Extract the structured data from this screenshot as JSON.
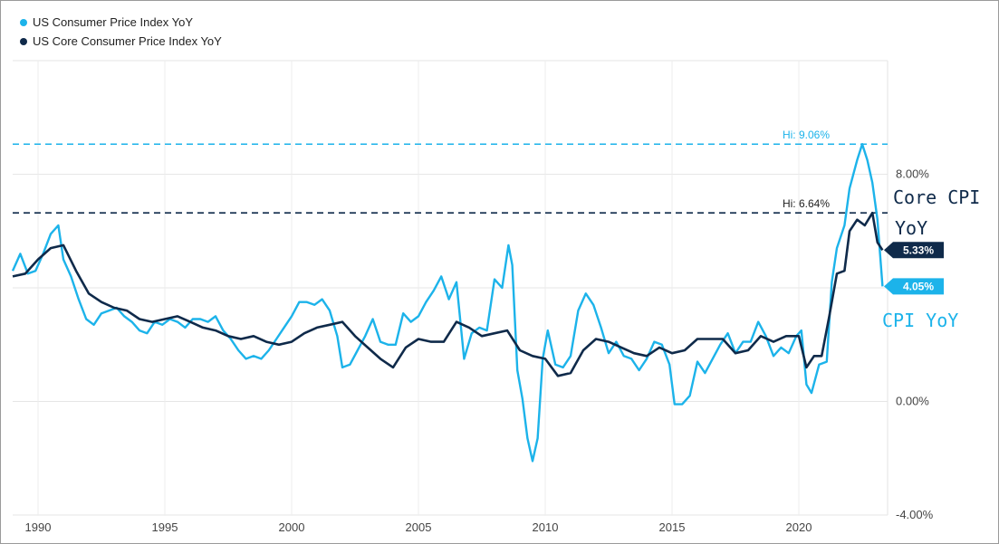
{
  "chart_data": {
    "type": "line",
    "series": [
      {
        "name": "US Consumer Price Index YoY",
        "color": "#1cb3ea",
        "last_value_label": "4.05%",
        "x": [
          1989.0,
          1989.3,
          1989.6,
          1989.9,
          1990.2,
          1990.5,
          1990.8,
          1991.0,
          1991.3,
          1991.6,
          1991.9,
          1992.2,
          1992.5,
          1992.8,
          1993.1,
          1993.4,
          1993.7,
          1994.0,
          1994.3,
          1994.6,
          1994.9,
          1995.2,
          1995.5,
          1995.8,
          1996.1,
          1996.4,
          1996.7,
          1997.0,
          1997.3,
          1997.6,
          1997.9,
          1998.2,
          1998.5,
          1998.8,
          1999.1,
          1999.4,
          1999.7,
          2000.0,
          2000.3,
          2000.6,
          2000.9,
          2001.2,
          2001.5,
          2001.8,
          2002.0,
          2002.3,
          2002.6,
          2002.9,
          2003.2,
          2003.5,
          2003.8,
          2004.1,
          2004.4,
          2004.7,
          2005.0,
          2005.3,
          2005.6,
          2005.9,
          2006.2,
          2006.5,
          2006.8,
          2007.1,
          2007.4,
          2007.7,
          2008.0,
          2008.3,
          2008.55,
          2008.7,
          2008.9,
          2009.1,
          2009.3,
          2009.5,
          2009.7,
          2009.9,
          2010.1,
          2010.4,
          2010.7,
          2011.0,
          2011.3,
          2011.6,
          2011.9,
          2012.2,
          2012.5,
          2012.8,
          2013.1,
          2013.4,
          2013.7,
          2014.0,
          2014.3,
          2014.6,
          2014.9,
          2015.1,
          2015.4,
          2015.7,
          2016.0,
          2016.3,
          2016.6,
          2016.9,
          2017.2,
          2017.5,
          2017.8,
          2018.1,
          2018.4,
          2018.7,
          2019.0,
          2019.3,
          2019.6,
          2019.9,
          2020.1,
          2020.3,
          2020.5,
          2020.8,
          2021.1,
          2021.3,
          2021.5,
          2021.8,
          2022.0,
          2022.3,
          2022.5,
          2022.7,
          2022.9,
          2023.1,
          2023.3
        ],
        "values": [
          4.6,
          5.2,
          4.5,
          4.6,
          5.2,
          5.9,
          6.2,
          5.0,
          4.4,
          3.6,
          2.9,
          2.7,
          3.1,
          3.2,
          3.3,
          3.0,
          2.8,
          2.5,
          2.4,
          2.8,
          2.7,
          2.9,
          2.8,
          2.6,
          2.9,
          2.9,
          2.8,
          3.0,
          2.5,
          2.2,
          1.8,
          1.5,
          1.6,
          1.5,
          1.8,
          2.2,
          2.6,
          3.0,
          3.5,
          3.5,
          3.4,
          3.6,
          3.2,
          2.3,
          1.2,
          1.3,
          1.8,
          2.3,
          2.9,
          2.1,
          2.0,
          2.0,
          3.1,
          2.8,
          3.0,
          3.5,
          3.9,
          4.4,
          3.6,
          4.2,
          1.5,
          2.4,
          2.6,
          2.5,
          4.3,
          4.0,
          5.5,
          4.8,
          1.1,
          0.1,
          -1.3,
          -2.1,
          -1.3,
          1.5,
          2.5,
          1.3,
          1.2,
          1.6,
          3.2,
          3.8,
          3.4,
          2.6,
          1.7,
          2.1,
          1.6,
          1.5,
          1.1,
          1.5,
          2.1,
          2.0,
          1.3,
          -0.1,
          -0.1,
          0.2,
          1.4,
          1.0,
          1.5,
          2.0,
          2.4,
          1.7,
          2.1,
          2.1,
          2.8,
          2.3,
          1.6,
          1.9,
          1.7,
          2.3,
          2.5,
          0.6,
          0.3,
          1.3,
          1.4,
          4.2,
          5.4,
          6.2,
          7.5,
          8.5,
          9.06,
          8.5,
          7.7,
          6.4,
          4.05
        ]
      },
      {
        "name": "US Core Consumer Price Index YoY",
        "color": "#0f2a4a",
        "last_value_label": "5.33%",
        "x": [
          1989.0,
          1989.5,
          1990.0,
          1990.5,
          1991.0,
          1991.5,
          1992.0,
          1992.5,
          1993.0,
          1993.5,
          1994.0,
          1994.5,
          1995.0,
          1995.5,
          1996.0,
          1996.5,
          1997.0,
          1997.5,
          1998.0,
          1998.5,
          1999.0,
          1999.5,
          2000.0,
          2000.5,
          2001.0,
          2001.5,
          2002.0,
          2002.5,
          2003.0,
          2003.5,
          2004.0,
          2004.5,
          2005.0,
          2005.5,
          2006.0,
          2006.5,
          2007.0,
          2007.5,
          2008.0,
          2008.5,
          2009.0,
          2009.5,
          2010.0,
          2010.5,
          2011.0,
          2011.5,
          2012.0,
          2012.5,
          2013.0,
          2013.5,
          2014.0,
          2014.5,
          2015.0,
          2015.5,
          2016.0,
          2016.5,
          2017.0,
          2017.5,
          2018.0,
          2018.5,
          2019.0,
          2019.5,
          2020.0,
          2020.3,
          2020.6,
          2020.9,
          2021.2,
          2021.5,
          2021.8,
          2022.0,
          2022.3,
          2022.6,
          2022.9,
          2023.1,
          2023.3
        ],
        "values": [
          4.4,
          4.5,
          5.0,
          5.4,
          5.5,
          4.6,
          3.8,
          3.5,
          3.3,
          3.2,
          2.9,
          2.8,
          2.9,
          3.0,
          2.8,
          2.6,
          2.5,
          2.3,
          2.2,
          2.3,
          2.1,
          2.0,
          2.1,
          2.4,
          2.6,
          2.7,
          2.8,
          2.3,
          1.9,
          1.5,
          1.2,
          1.9,
          2.2,
          2.1,
          2.1,
          2.8,
          2.6,
          2.3,
          2.4,
          2.5,
          1.8,
          1.6,
          1.5,
          0.9,
          1.0,
          1.8,
          2.2,
          2.1,
          1.9,
          1.7,
          1.6,
          1.9,
          1.7,
          1.8,
          2.2,
          2.2,
          2.2,
          1.7,
          1.8,
          2.3,
          2.1,
          2.3,
          2.3,
          1.2,
          1.6,
          1.6,
          3.0,
          4.5,
          4.6,
          6.0,
          6.4,
          6.2,
          6.64,
          5.6,
          5.33
        ]
      }
    ],
    "xlim": [
      1989.0,
      2023.5
    ],
    "ylim": [
      -4.0,
      12.0
    ],
    "x_ticks": [
      1990,
      1995,
      2000,
      2005,
      2010,
      2015,
      2020
    ],
    "x_tick_labels": [
      "1990",
      "1995",
      "2000",
      "2005",
      "2010",
      "2015",
      "2020"
    ],
    "y_ticks": [
      -4,
      0,
      8
    ],
    "y_tick_labels": [
      "-4.00%",
      "0.00%",
      "8.00%"
    ],
    "y_gridlines": [
      -4,
      0,
      4,
      8,
      12
    ],
    "reference_lines": [
      {
        "value": 9.06,
        "label": "Hi: 9.06%",
        "color": "#1cb3ea"
      },
      {
        "value": 6.64,
        "label": "Hi: 6.64%",
        "color": "#0f2a4a"
      }
    ],
    "annotations": {
      "core_line1": "Core CPI",
      "core_line2": "YoY",
      "cpi": "CPI YoY"
    },
    "legend_position": "top-left"
  }
}
